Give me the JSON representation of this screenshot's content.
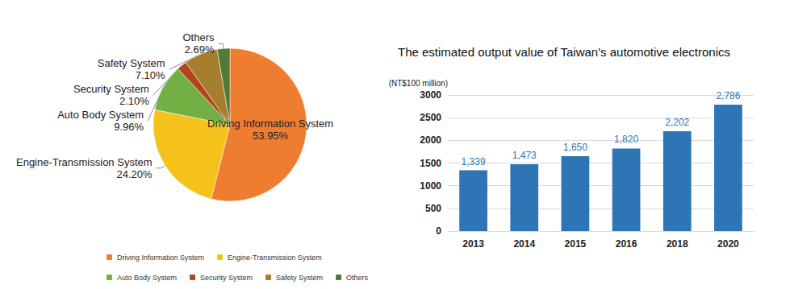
{
  "chart_data": [
    {
      "type": "pie",
      "categories": [
        "Driving Information System",
        "Engine-Transmission System",
        "Auto Body System",
        "Security System",
        "Safety System",
        "Others"
      ],
      "values": [
        53.95,
        24.2,
        9.96,
        2.1,
        7.1,
        2.69
      ],
      "value_labels": [
        "53.95%",
        "24.20%",
        "9.96%",
        "2.10%",
        "7.10%",
        "2.69%"
      ],
      "colors": [
        "#ef7d30",
        "#f5c21b",
        "#72b043",
        "#b4441c",
        "#a67f2c",
        "#4f7b36"
      ],
      "data_labels": true,
      "legend": "bottom"
    },
    {
      "type": "bar",
      "title": "The estimated output value of Taiwan's automotive electronics",
      "ylabel": "(NT$100 million)",
      "categories": [
        "2013",
        "2014",
        "2015",
        "2016",
        "2018",
        "2020"
      ],
      "values": [
        1339,
        1473,
        1650,
        1820,
        2202,
        2786
      ],
      "value_labels": [
        "1,339",
        "1,473",
        "1,650",
        "1,820",
        "2,202",
        "2,786"
      ],
      "color": "#2e75b6",
      "ylim": [
        0,
        3000
      ],
      "yticks": [
        0,
        500,
        1000,
        1500,
        2000,
        2500,
        3000
      ],
      "grid": true,
      "data_labels": true
    }
  ]
}
